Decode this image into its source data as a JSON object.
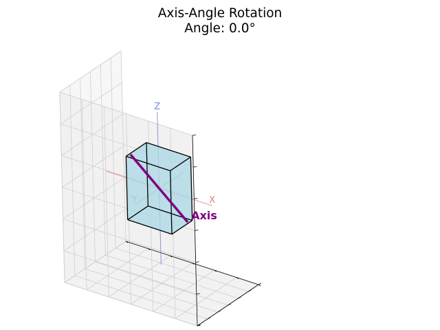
{
  "chart_data": {
    "type": "3d-wireframe",
    "title": "Axis-Angle Rotation",
    "subtitle": "Angle: 0.0°",
    "angle_deg": 0.0,
    "xlabel": "",
    "ylabel": "",
    "zlabel": "",
    "xlim": [
      -1.5,
      1.5
    ],
    "ylim": [
      -1.5,
      1.5
    ],
    "zlim": [
      -1.5,
      1.5
    ],
    "grid": true,
    "tick_labels_shown": false,
    "cube": {
      "vertices": [
        [
          -0.5,
          -0.5,
          -0.5
        ],
        [
          0.5,
          -0.5,
          -0.5
        ],
        [
          0.5,
          0.5,
          -0.5
        ],
        [
          -0.5,
          0.5,
          -0.5
        ],
        [
          -0.5,
          -0.5,
          0.5
        ],
        [
          0.5,
          -0.5,
          0.5
        ],
        [
          0.5,
          0.5,
          0.5
        ],
        [
          -0.5,
          0.5,
          0.5
        ]
      ],
      "face_color": "#add8e6",
      "edge_color": "#000000"
    },
    "rotation_axis": {
      "label": "Axis",
      "start": [
        -1.2,
        -1.2,
        0.0
      ],
      "end": [
        1.2,
        1.2,
        0.0
      ],
      "color": "#800080"
    },
    "reference_axes": [
      {
        "label": "X",
        "start": [
          -1.2,
          0,
          0
        ],
        "end": [
          1.2,
          0,
          0
        ],
        "color": "#e06666"
      },
      {
        "label": "Y",
        "start": [
          0,
          -1.2,
          0
        ],
        "end": [
          0,
          1.2,
          0
        ],
        "color": "#5aa05a"
      },
      {
        "label": "Z",
        "start": [
          0,
          0,
          -1.2
        ],
        "end": [
          0,
          0,
          1.2
        ],
        "color": "#6677cc"
      }
    ]
  }
}
